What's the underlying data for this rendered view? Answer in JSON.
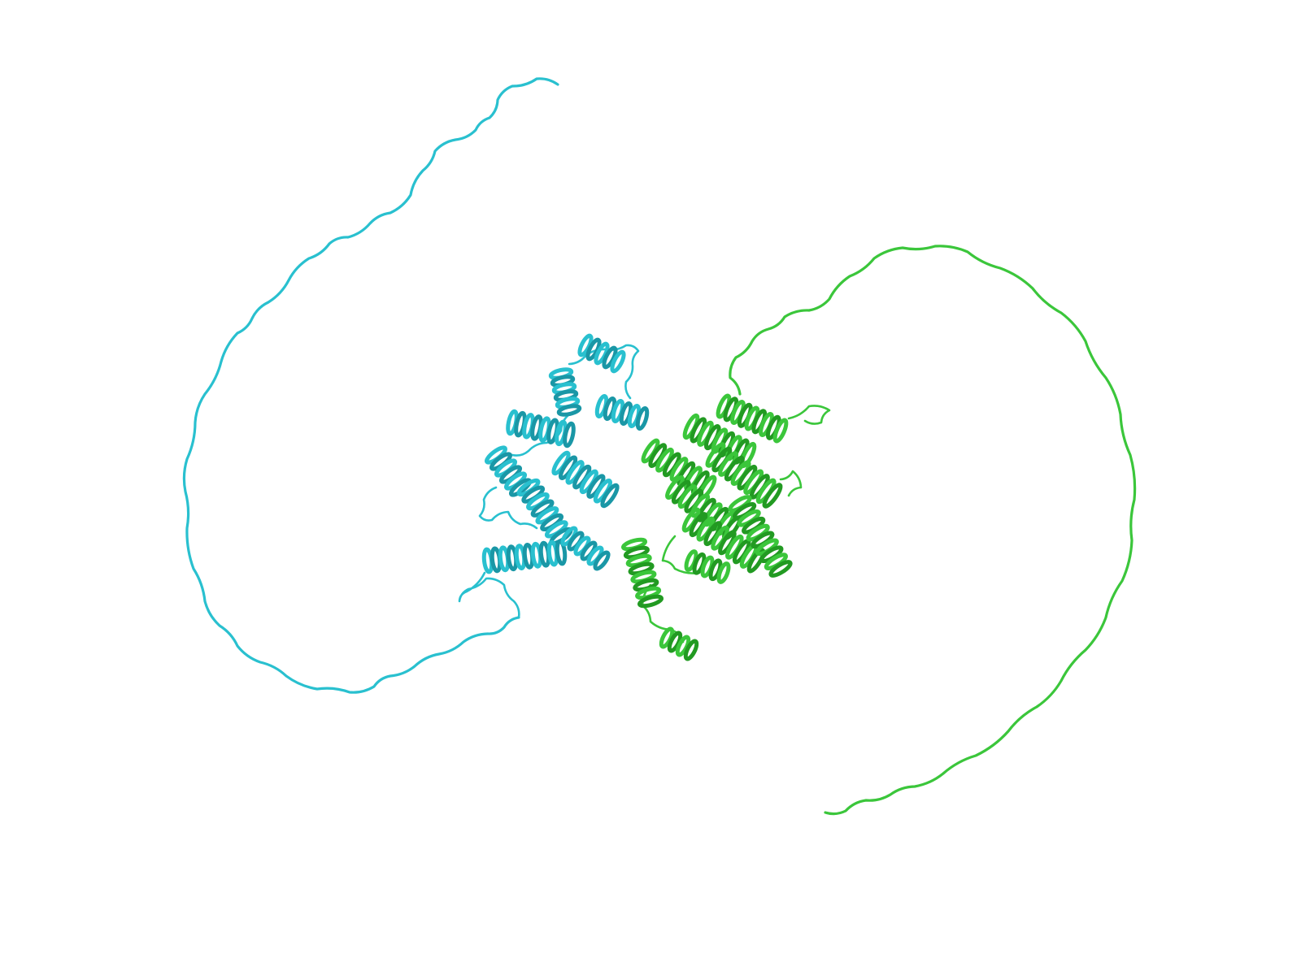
{
  "image": {
    "kind": "protein-structure-cartoon",
    "background": "#ffffff"
  },
  "chains": [
    {
      "name": "chain-cyan",
      "color": "#29c0cf",
      "shade": "#1a97a6"
    },
    {
      "name": "chain-green",
      "color": "#3bc63b",
      "shade": "#229a22"
    }
  ]
}
